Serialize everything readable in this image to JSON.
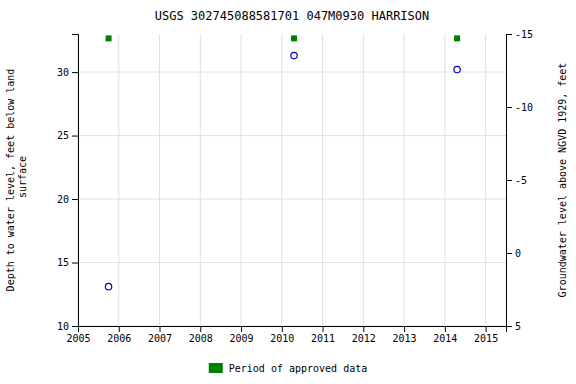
{
  "chart_data": {
    "type": "scatter",
    "title": "USGS 302745088581701 047M0930  HARRISON",
    "y_label": "Depth to water level, feet below land\n surface",
    "y2_label": "Groundwater level above NGVD 1929, feet",
    "x": [
      2005.75,
      2010.3,
      2014.3
    ],
    "series": [
      {
        "values": [
          13.1,
          31.3,
          30.2
        ],
        "color": "#0000cc",
        "marker": "circle"
      },
      {
        "name": "Period of approved data",
        "values": [
          32.655,
          32.655,
          32.655
        ],
        "color": "#008000",
        "marker": "square"
      }
    ],
    "xlim": [
      2005,
      2015.5
    ],
    "xticks": [
      2005,
      2006,
      2007,
      2008,
      2009,
      2010,
      2011,
      2012,
      2013,
      2014,
      2015
    ],
    "ylim": [
      10,
      33
    ],
    "yticks": [
      10,
      15,
      20,
      25,
      30
    ],
    "y2lim": [
      5,
      -15
    ],
    "y2ticks": [
      5,
      0,
      -5,
      -10,
      -15
    ],
    "grid": true,
    "legend": "bottom"
  }
}
